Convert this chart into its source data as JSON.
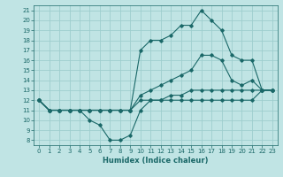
{
  "background_color": "#c0e4e4",
  "grid_color": "#9ecece",
  "line_color": "#1a6868",
  "xlabel": "Humidex (Indice chaleur)",
  "xlim": [
    -0.5,
    23.5
  ],
  "ylim": [
    7.5,
    21.5
  ],
  "xticks": [
    0,
    1,
    2,
    3,
    4,
    5,
    6,
    7,
    8,
    9,
    10,
    11,
    12,
    13,
    14,
    15,
    16,
    17,
    18,
    19,
    20,
    21,
    22,
    23
  ],
  "yticks": [
    8,
    9,
    10,
    11,
    12,
    13,
    14,
    15,
    16,
    17,
    18,
    19,
    20,
    21
  ],
  "series": [
    {
      "x": [
        0,
        1,
        2,
        3,
        4,
        5,
        6,
        7,
        8,
        9,
        10,
        11,
        12,
        13,
        14,
        15,
        16,
        17,
        18,
        19,
        20,
        21,
        22,
        23
      ],
      "y": [
        12,
        11,
        11,
        11,
        11,
        10,
        9.5,
        8,
        8,
        8.5,
        11,
        12,
        12,
        12,
        12,
        12,
        12,
        12,
        12,
        12,
        12,
        12,
        13,
        13
      ]
    },
    {
      "x": [
        0,
        1,
        2,
        3,
        4,
        5,
        6,
        7,
        8,
        9,
        10,
        11,
        12,
        13,
        14,
        15,
        16,
        17,
        18,
        19,
        20,
        21,
        22,
        23
      ],
      "y": [
        12,
        11,
        11,
        11,
        11,
        11,
        11,
        11,
        11,
        11,
        12,
        12,
        12,
        12.5,
        12.5,
        13,
        13,
        13,
        13,
        13,
        13,
        13,
        13,
        13
      ]
    },
    {
      "x": [
        0,
        1,
        2,
        3,
        4,
        5,
        6,
        7,
        8,
        9,
        10,
        11,
        12,
        13,
        14,
        15,
        16,
        17,
        18,
        19,
        20,
        21,
        22,
        23
      ],
      "y": [
        12,
        11,
        11,
        11,
        11,
        11,
        11,
        11,
        11,
        11,
        12.5,
        13,
        13.5,
        14,
        14.5,
        15,
        16.5,
        16.5,
        16,
        14,
        13.5,
        14,
        13,
        13
      ]
    },
    {
      "x": [
        0,
        1,
        2,
        3,
        4,
        5,
        6,
        7,
        8,
        9,
        10,
        11,
        12,
        13,
        14,
        15,
        16,
        17,
        18,
        19,
        20,
        21,
        22,
        23
      ],
      "y": [
        12,
        11,
        11,
        11,
        11,
        11,
        11,
        11,
        11,
        11,
        17,
        18,
        18,
        18.5,
        19.5,
        19.5,
        21,
        20,
        19,
        16.5,
        16,
        16,
        13,
        13
      ]
    }
  ]
}
